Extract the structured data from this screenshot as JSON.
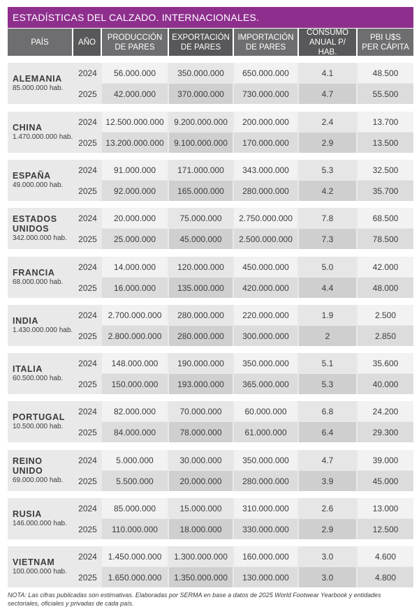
{
  "title": "ESTADÍSTICAS DEL CALZADO. INTERNACIONALES.",
  "headers": {
    "pais": "PAÍS",
    "ano": "AÑO",
    "produccion_1": "PRODUCCIÓN",
    "produccion_2": "DE PARES",
    "exportacion_1": "EXPORTACIÓN",
    "exportacion_2": "DE PARES",
    "importacion_1": "IMPORTACIÓN",
    "importacion_2": "DE PARES",
    "consumo_1": "CONSUMO",
    "consumo_2": "ANUAL P/ HAB.",
    "pbi_1": "PBI U$S",
    "pbi_2": "PER CÁPITA"
  },
  "countries": [
    {
      "name_1": "ALEMANIA",
      "name_2": "",
      "population": "85.000.000 hab.",
      "rows": [
        {
          "year": "2024",
          "produccion": "56.000.000",
          "exportacion": "350.000.000",
          "importacion": "650.000.000",
          "consumo": "4.1",
          "pbi": "48.500"
        },
        {
          "year": "2025",
          "produccion": "42.000.000",
          "exportacion": "370.000.000",
          "importacion": "730.000.000",
          "consumo": "4.7",
          "pbi": "55.500"
        }
      ]
    },
    {
      "name_1": "CHINA",
      "name_2": "",
      "population": "1.470.000.000 hab.",
      "rows": [
        {
          "year": "2024",
          "produccion": "12.500.000.000",
          "exportacion": "9.200.000.000",
          "importacion": "200.000.000",
          "consumo": "2.4",
          "pbi": "13.700"
        },
        {
          "year": "2025",
          "produccion": "13.200.000.000",
          "exportacion": "9.100.000.000",
          "importacion": "170.000.000",
          "consumo": "2.9",
          "pbi": "13.500"
        }
      ]
    },
    {
      "name_1": "ESPAÑA",
      "name_2": "",
      "population": "49.000.000 hab.",
      "rows": [
        {
          "year": "2024",
          "produccion": "91.000.000",
          "exportacion": "171.000.000",
          "importacion": "343.000.000",
          "consumo": "5.3",
          "pbi": "32.500"
        },
        {
          "year": "2025",
          "produccion": "92.000.000",
          "exportacion": "165.000.000",
          "importacion": "280.000.000",
          "consumo": "4.2",
          "pbi": "35.700"
        }
      ]
    },
    {
      "name_1": "ESTADOS",
      "name_2": "UNIDOS",
      "population": "342.000.000 hab.",
      "rows": [
        {
          "year": "2024",
          "produccion": "20.000.000",
          "exportacion": "75.000.000",
          "importacion": "2.750.000.000",
          "consumo": "7.8",
          "pbi": "68.500"
        },
        {
          "year": "2025",
          "produccion": "25.000.000",
          "exportacion": "45.000.000",
          "importacion": "2.500.000.000",
          "consumo": "7.3",
          "pbi": "78.500"
        }
      ]
    },
    {
      "name_1": "FRANCIA",
      "name_2": "",
      "population": "68.000.000 hab.",
      "rows": [
        {
          "year": "2024",
          "produccion": "14.000.000",
          "exportacion": "120.000.000",
          "importacion": "450.000.000",
          "consumo": "5.0",
          "pbi": "42.000"
        },
        {
          "year": "2025",
          "produccion": "16.000.000",
          "exportacion": "135.000.000",
          "importacion": "420.000.000",
          "consumo": "4.4",
          "pbi": "48.000"
        }
      ]
    },
    {
      "name_1": "INDIA",
      "name_2": "",
      "population": "1.430.000.000 hab.",
      "rows": [
        {
          "year": "2024",
          "produccion": "2.700.000.000",
          "exportacion": "280.000.000",
          "importacion": "220.000.000",
          "consumo": "1.9",
          "pbi": "2.500"
        },
        {
          "year": "2025",
          "produccion": "2.800.000.000",
          "exportacion": "280.000.000",
          "importacion": "300.000.000",
          "consumo": "2",
          "pbi": "2.850"
        }
      ]
    },
    {
      "name_1": "ITALIA",
      "name_2": "",
      "population": "60.500.000 hab.",
      "rows": [
        {
          "year": "2024",
          "produccion": "148.000.000",
          "exportacion": "190.000.000",
          "importacion": "350.000.000",
          "consumo": "5.1",
          "pbi": "35.600"
        },
        {
          "year": "2025",
          "produccion": "150.000.000",
          "exportacion": "193.000.000",
          "importacion": "365.000.000",
          "consumo": "5.3",
          "pbi": "40.000"
        }
      ]
    },
    {
      "name_1": "PORTUGAL",
      "name_2": "",
      "population": "10.500.000 hab.",
      "rows": [
        {
          "year": "2024",
          "produccion": "82.000.000",
          "exportacion": "70.000.000",
          "importacion": "60.000.000",
          "consumo": "6.8",
          "pbi": "24.200"
        },
        {
          "year": "2025",
          "produccion": "84.000.000",
          "exportacion": "78.000.000",
          "importacion": "61.000.000",
          "consumo": "6.4",
          "pbi": "29.300"
        }
      ]
    },
    {
      "name_1": "REINO",
      "name_2": "UNIDO",
      "population": "69.000.000 hab.",
      "rows": [
        {
          "year": "2024",
          "produccion": "5.000.000",
          "exportacion": "30.000.000",
          "importacion": "350.000.000",
          "consumo": "4.7",
          "pbi": "39.000"
        },
        {
          "year": "2025",
          "produccion": "5.500.000",
          "exportacion": "20.000.000",
          "importacion": "280.000.000",
          "consumo": "3.9",
          "pbi": "45.000"
        }
      ]
    },
    {
      "name_1": "RUSIA",
      "name_2": "",
      "population": "146.000.000 hab.",
      "rows": [
        {
          "year": "2024",
          "produccion": "85.000.000",
          "exportacion": "15.000.000",
          "importacion": "310.000.000",
          "consumo": "2.6",
          "pbi": "13.000"
        },
        {
          "year": "2025",
          "produccion": "110.000.000",
          "exportacion": "18.000.000",
          "importacion": "330.000.000",
          "consumo": "2.9",
          "pbi": "12.500"
        }
      ]
    },
    {
      "name_1": "VIETNAM",
      "name_2": "",
      "population": "100.000.000 hab.",
      "rows": [
        {
          "year": "2024",
          "produccion": "1.450.000.000",
          "exportacion": "1.300.000.000",
          "importacion": "160.000.000",
          "consumo": "3.0",
          "pbi": "4.600"
        },
        {
          "year": "2025",
          "produccion": "1.650.000.000",
          "exportacion": "1.350.000.000",
          "importacion": "130.000.000",
          "consumo": "3.0",
          "pbi": "4.800"
        }
      ]
    }
  ],
  "note": "NOTA: Las cifras publicadas son estimativas. Elaboradas por SERMA en base a datos de 2025 World Footwear Yearbook y entidades sectoriales, oficiales y privadas de cada país."
}
